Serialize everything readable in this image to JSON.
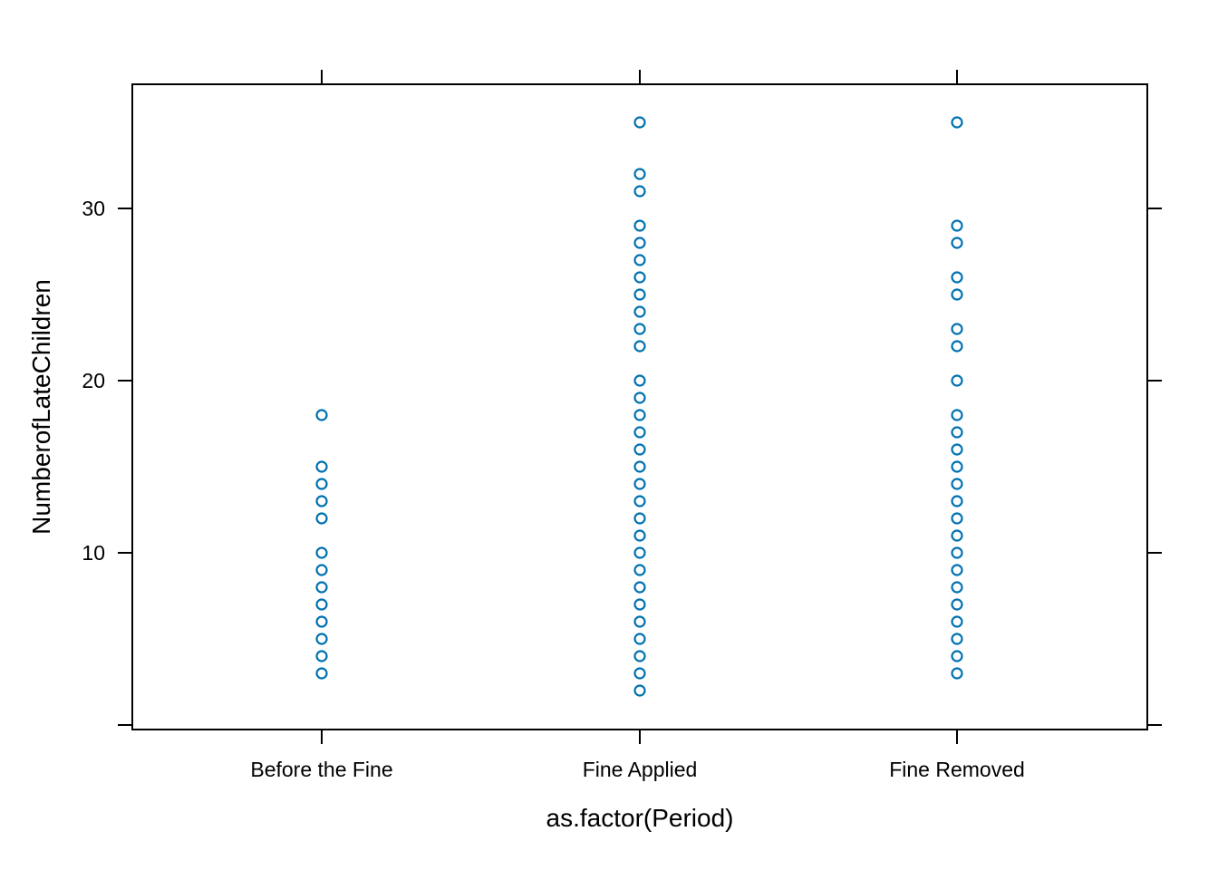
{
  "chart_data": {
    "type": "scatter",
    "xlabel": "as.factor(Period)",
    "ylabel": "NumberofLateChildren",
    "categories": [
      "Before the Fine",
      "Fine Applied",
      "Fine Removed"
    ],
    "yticks": [
      10,
      20,
      30
    ],
    "ylim": [
      0,
      37
    ],
    "point_color": "#0072b2",
    "grid": false,
    "series": [
      {
        "category": "Before the Fine",
        "values": [
          3,
          4,
          5,
          6,
          7,
          8,
          9,
          10,
          12,
          13,
          14,
          15,
          18
        ]
      },
      {
        "category": "Fine Applied",
        "values": [
          2,
          3,
          4,
          5,
          6,
          7,
          8,
          9,
          10,
          11,
          12,
          13,
          14,
          15,
          16,
          17,
          18,
          19,
          20,
          22,
          23,
          24,
          25,
          26,
          27,
          28,
          29,
          31,
          32,
          35
        ]
      },
      {
        "category": "Fine Removed",
        "values": [
          3,
          4,
          5,
          6,
          7,
          8,
          9,
          10,
          11,
          12,
          13,
          14,
          15,
          16,
          17,
          18,
          20,
          22,
          23,
          25,
          26,
          28,
          29,
          35
        ]
      }
    ]
  }
}
